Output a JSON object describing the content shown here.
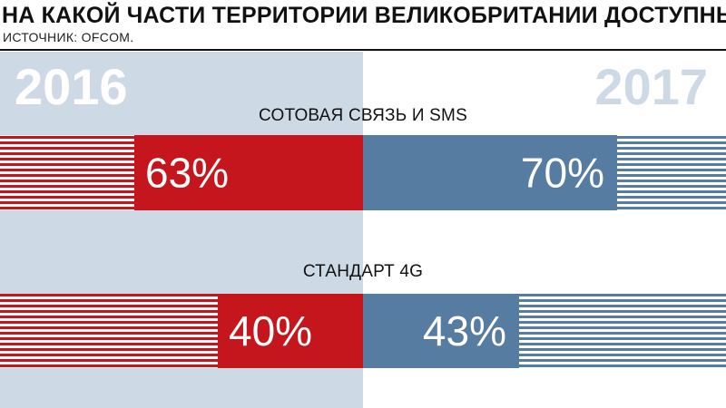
{
  "header": {
    "title": "НА КАКОЙ ЧАСТИ ТЕРРИТОРИИ ВЕЛИКОБРИТАНИИ ДОСТУПНЫ...",
    "source": "ИСТОЧНИК: OFCOM."
  },
  "colors": {
    "year_2016": "#c5161d",
    "year_2017": "#567ca1",
    "left_panel": "#cdd9e5"
  },
  "chart_data": {
    "type": "bar",
    "title": "НА КАКОЙ ЧАСТИ ТЕРРИТОРИИ ВЕЛИКОБРИТАНИИ ДОСТУПНЫ...",
    "categories": [
      "СОТОВАЯ СВЯЗЬ И SMS",
      "СТАНДАРТ 4G"
    ],
    "series": [
      {
        "name": "2016",
        "values": [
          63,
          40
        ],
        "labels": [
          "63%",
          "40%"
        ]
      },
      {
        "name": "2017",
        "values": [
          70,
          43
        ],
        "labels": [
          "70%",
          "43%"
        ]
      }
    ],
    "ylim": [
      0,
      100
    ],
    "unit": "%"
  }
}
